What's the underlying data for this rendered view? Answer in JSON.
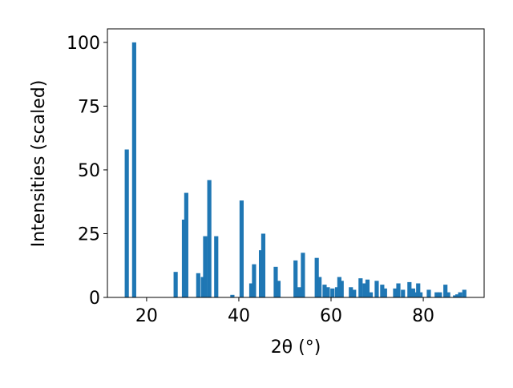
{
  "chart_data": {
    "type": "bar",
    "xlabel": "2θ (°)",
    "ylabel": "Intensities (scaled)",
    "color": "#1f77b4",
    "x": [
      15.7,
      17.3,
      26.3,
      28.1,
      28.6,
      31.2,
      32.2,
      32.7,
      33.6,
      35.1,
      38.6,
      40.6,
      42.7,
      43.3,
      44.8,
      45.3,
      48.0,
      48.6,
      52.3,
      53.1,
      53.9,
      56.9,
      57.5,
      58.6,
      59.3,
      60.3,
      61.3,
      61.8,
      62.3,
      64.3,
      65.0,
      66.4,
      67.3,
      67.9,
      68.6,
      69.9,
      71.1,
      71.7,
      73.9,
      74.6,
      75.6,
      77.0,
      77.8,
      78.4,
      78.9,
      79.4,
      81.2,
      82.9,
      83.6,
      84.8,
      85.4,
      86.9,
      87.4,
      88.0,
      88.9
    ],
    "values": [
      58,
      100,
      10,
      30.5,
      41,
      9.5,
      8,
      24,
      46,
      24,
      1,
      38,
      5.5,
      13,
      18.5,
      25,
      12,
      6.5,
      14.5,
      4,
      17.5,
      15.5,
      8,
      5,
      4,
      3.5,
      4,
      8,
      6.5,
      4,
      3,
      7.5,
      5.5,
      7,
      2,
      6.5,
      5,
      3.5,
      3.5,
      5.5,
      3,
      6,
      3.5,
      2,
      5.5,
      2,
      3,
      2,
      2,
      5,
      2,
      0.8,
      1.2,
      2,
      3
    ],
    "xlim": [
      11.5,
      93.2
    ],
    "ylim": [
      0,
      105.3
    ],
    "xticks": [
      20,
      40,
      60,
      80
    ],
    "yticks": [
      0,
      25,
      50,
      75,
      100
    ]
  }
}
